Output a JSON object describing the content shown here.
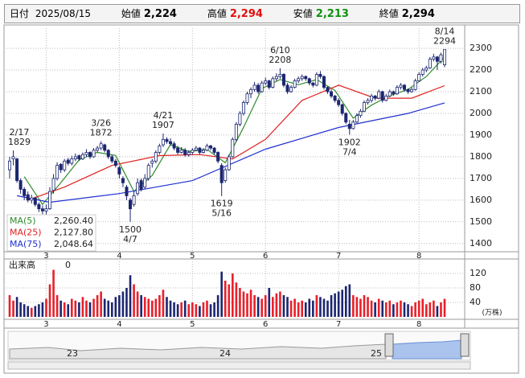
{
  "header": {
    "date_label": "日付",
    "date": "2025/08/15",
    "fields": [
      {
        "label": "始値",
        "value": "2,224"
      },
      {
        "label": "高値",
        "value": "2,294"
      },
      {
        "label": "安値",
        "value": "2,213"
      },
      {
        "label": "終値",
        "value": "2,294"
      }
    ]
  },
  "chart_data": [
    {
      "type": "candlestick",
      "up_color": "#ffffff",
      "down_color": "#1c2670",
      "ylim": [
        1362,
        2393
      ],
      "yticks": [
        1400,
        1500,
        1600,
        1700,
        1800,
        1900,
        2000,
        2100,
        2200,
        2300
      ],
      "xlim": [
        0,
        119
      ],
      "xticks": [
        {
          "value": 10,
          "label": "3"
        },
        {
          "value": 30,
          "label": "4"
        },
        {
          "value": 50,
          "label": "5"
        },
        {
          "value": 70,
          "label": "6"
        },
        {
          "value": 90,
          "label": "7"
        },
        {
          "value": 112,
          "label": "8"
        }
      ],
      "grid": true,
      "candles": [
        [
          1740,
          1800,
          1700,
          1780
        ],
        [
          1790,
          1829,
          1760,
          1800
        ],
        [
          1790,
          1795,
          1680,
          1690
        ],
        [
          1690,
          1700,
          1630,
          1650
        ],
        [
          1650,
          1660,
          1600,
          1620
        ],
        [
          1625,
          1640,
          1590,
          1600
        ],
        [
          1600,
          1625,
          1585,
          1610
        ],
        [
          1610,
          1615,
          1570,
          1580
        ],
        [
          1580,
          1590,
          1545,
          1560
        ],
        [
          1560,
          1575,
          1535,
          1550
        ],
        [
          1550,
          1580,
          1530,
          1560
        ],
        [
          1560,
          1660,
          1555,
          1640
        ],
        [
          1645,
          1720,
          1630,
          1700
        ],
        [
          1700,
          1775,
          1690,
          1760
        ],
        [
          1765,
          1770,
          1725,
          1740
        ],
        [
          1740,
          1790,
          1730,
          1780
        ],
        [
          1785,
          1795,
          1760,
          1770
        ],
        [
          1770,
          1805,
          1760,
          1790
        ],
        [
          1790,
          1815,
          1780,
          1800
        ],
        [
          1805,
          1810,
          1780,
          1790
        ],
        [
          1790,
          1820,
          1785,
          1810
        ],
        [
          1810,
          1835,
          1800,
          1820
        ],
        [
          1820,
          1825,
          1790,
          1800
        ],
        [
          1800,
          1840,
          1795,
          1830
        ],
        [
          1830,
          1850,
          1820,
          1840
        ],
        [
          1840,
          1872,
          1830,
          1860
        ],
        [
          1855,
          1860,
          1820,
          1830
        ],
        [
          1830,
          1835,
          1790,
          1800
        ],
        [
          1800,
          1810,
          1770,
          1780
        ],
        [
          1780,
          1790,
          1750,
          1760
        ],
        [
          1750,
          1760,
          1700,
          1720
        ],
        [
          1700,
          1710,
          1660,
          1680
        ],
        [
          1660,
          1670,
          1600,
          1620
        ],
        [
          1600,
          1610,
          1500,
          1560
        ],
        [
          1580,
          1640,
          1570,
          1620
        ],
        [
          1630,
          1700,
          1620,
          1680
        ],
        [
          1690,
          1700,
          1640,
          1650
        ],
        [
          1660,
          1720,
          1650,
          1700
        ],
        [
          1700,
          1770,
          1690,
          1760
        ],
        [
          1770,
          1790,
          1750,
          1780
        ],
        [
          1780,
          1830,
          1770,
          1820
        ],
        [
          1820,
          1860,
          1810,
          1850
        ],
        [
          1855,
          1907,
          1845,
          1880
        ],
        [
          1880,
          1890,
          1860,
          1870
        ],
        [
          1870,
          1885,
          1850,
          1860
        ],
        [
          1860,
          1870,
          1830,
          1840
        ],
        [
          1840,
          1850,
          1810,
          1820
        ],
        [
          1820,
          1845,
          1815,
          1830
        ],
        [
          1830,
          1840,
          1800,
          1810
        ],
        [
          1810,
          1830,
          1800,
          1820
        ],
        [
          1820,
          1840,
          1810,
          1830
        ],
        [
          1830,
          1850,
          1825,
          1840
        ],
        [
          1840,
          1845,
          1810,
          1820
        ],
        [
          1820,
          1840,
          1815,
          1830
        ],
        [
          1830,
          1860,
          1825,
          1850
        ],
        [
          1850,
          1855,
          1830,
          1840
        ],
        [
          1840,
          1845,
          1810,
          1820
        ],
        [
          1820,
          1825,
          1770,
          1780
        ],
        [
          1760,
          1770,
          1619,
          1680
        ],
        [
          1690,
          1750,
          1680,
          1740
        ],
        [
          1740,
          1810,
          1735,
          1800
        ],
        [
          1800,
          1890,
          1795,
          1880
        ],
        [
          1880,
          1960,
          1870,
          1950
        ],
        [
          1950,
          2010,
          1940,
          2000
        ],
        [
          2000,
          2060,
          1990,
          2050
        ],
        [
          2050,
          2100,
          2040,
          2090
        ],
        [
          2090,
          2120,
          2070,
          2110
        ],
        [
          2110,
          2145,
          2100,
          2130
        ],
        [
          2130,
          2140,
          2090,
          2100
        ],
        [
          2100,
          2150,
          2095,
          2140
        ],
        [
          2140,
          2165,
          2130,
          2150
        ],
        [
          2150,
          2155,
          2110,
          2120
        ],
        [
          2120,
          2170,
          2115,
          2160
        ],
        [
          2160,
          2185,
          2150,
          2170
        ],
        [
          2170,
          2208,
          2160,
          2180
        ],
        [
          2180,
          2185,
          2120,
          2130
        ],
        [
          2130,
          2140,
          2090,
          2100
        ],
        [
          2100,
          2130,
          2095,
          2120
        ],
        [
          2120,
          2160,
          2115,
          2150
        ],
        [
          2150,
          2170,
          2140,
          2160
        ],
        [
          2160,
          2180,
          2150,
          2170
        ],
        [
          2170,
          2175,
          2150,
          2160
        ],
        [
          2160,
          2165,
          2130,
          2140
        ],
        [
          2140,
          2145,
          2120,
          2130
        ],
        [
          2130,
          2190,
          2125,
          2180
        ],
        [
          2180,
          2195,
          2160,
          2170
        ],
        [
          2170,
          2175,
          2110,
          2120
        ],
        [
          2120,
          2125,
          2090,
          2100
        ],
        [
          2100,
          2110,
          2070,
          2080
        ],
        [
          2080,
          2085,
          2050,
          2060
        ],
        [
          2060,
          2070,
          2030,
          2040
        ],
        [
          2040,
          2045,
          1990,
          2000
        ],
        [
          2000,
          2005,
          1950,
          1960
        ],
        [
          1950,
          1970,
          1902,
          1930
        ],
        [
          1930,
          1970,
          1925,
          1960
        ],
        [
          1960,
          2000,
          1955,
          1990
        ],
        [
          1990,
          2020,
          1980,
          2010
        ],
        [
          2010,
          2060,
          2005,
          2050
        ],
        [
          2050,
          2070,
          2040,
          2060
        ],
        [
          2060,
          2090,
          2050,
          2080
        ],
        [
          2080,
          2085,
          2060,
          2070
        ],
        [
          2070,
          2110,
          2065,
          2100
        ],
        [
          2100,
          2105,
          2050,
          2060
        ],
        [
          2060,
          2090,
          2055,
          2080
        ],
        [
          2080,
          2110,
          2075,
          2100
        ],
        [
          2100,
          2105,
          2080,
          2090
        ],
        [
          2090,
          2130,
          2085,
          2120
        ],
        [
          2120,
          2140,
          2110,
          2130
        ],
        [
          2130,
          2135,
          2100,
          2110
        ],
        [
          2110,
          2115,
          2090,
          2100
        ],
        [
          2100,
          2120,
          2095,
          2110
        ],
        [
          2110,
          2160,
          2105,
          2150
        ],
        [
          2150,
          2190,
          2145,
          2180
        ],
        [
          2180,
          2210,
          2170,
          2200
        ],
        [
          2200,
          2220,
          2190,
          2210
        ],
        [
          2210,
          2260,
          2205,
          2250
        ],
        [
          2250,
          2275,
          2240,
          2260
        ],
        [
          2260,
          2265,
          2200,
          2240
        ],
        [
          2240,
          2280,
          2230,
          2270
        ],
        [
          2224,
          2294,
          2213,
          2294
        ]
      ],
      "annotations": [
        {
          "date": "2/17",
          "value": 1829
        },
        {
          "date": "3/26",
          "value": 1872
        },
        {
          "date": "4/7",
          "value": 1500
        },
        {
          "date": "4/21",
          "value": 1907
        },
        {
          "date": "5/16",
          "value": 1619
        },
        {
          "date": "6/10",
          "value": 2208
        },
        {
          "date": "7/4",
          "value": 1902
        },
        {
          "date": "8/14",
          "value": 2294
        }
      ],
      "series": [
        {
          "name": "MA(5)",
          "color": "#2e8b2e",
          "latest": "2,260.40",
          "x": [
            4,
            9,
            14,
            19,
            24,
            29,
            34,
            39,
            44,
            49,
            54,
            59,
            64,
            69,
            74,
            79,
            84,
            89,
            94,
            99,
            104,
            109,
            114,
            119
          ],
          "values": [
            1708,
            1580,
            1680,
            1786,
            1820,
            1806,
            1640,
            1714,
            1856,
            1824,
            1834,
            1772,
            1936,
            2114,
            2156,
            2132,
            2156,
            2106,
            1978,
            2038,
            2082,
            2110,
            2170,
            2260.4
          ]
        },
        {
          "name": "MA(25)",
          "color": "#e02020",
          "latest": "2,127.80",
          "x": [
            5,
            15,
            28,
            41,
            52,
            61,
            70,
            80,
            90,
            100,
            110,
            119
          ],
          "values": [
            1600,
            1660,
            1760,
            1805,
            1810,
            1790,
            1880,
            2060,
            2130,
            2070,
            2070,
            2127.8
          ]
        },
        {
          "name": "MA(75)",
          "color": "#2030d0",
          "latest": "2,048.64",
          "x": [
            2,
            11,
            30,
            50,
            70,
            90,
            109,
            119
          ],
          "values": [
            1620,
            1590,
            1630,
            1690,
            1835,
            1935,
            2000,
            2048.64
          ]
        }
      ]
    },
    {
      "type": "bar",
      "title": "出来高",
      "current": 0,
      "unit": "(万株)",
      "up_color": "#e8202a",
      "down_color": "#1c2670",
      "ylim": [
        0,
        160
      ],
      "yticks": [
        40,
        80,
        120
      ],
      "xlim": [
        0,
        119
      ],
      "xticks": [
        {
          "value": 10,
          "label": "3"
        },
        {
          "value": 30,
          "label": "4"
        },
        {
          "value": 50,
          "label": "5"
        },
        {
          "value": 70,
          "label": "6"
        },
        {
          "value": 90,
          "label": "7"
        },
        {
          "value": 112,
          "label": "8"
        }
      ],
      "values": [
        60,
        45,
        55,
        40,
        35,
        30,
        25,
        30,
        35,
        40,
        50,
        90,
        130,
        60,
        45,
        40,
        35,
        50,
        45,
        40,
        55,
        45,
        40,
        50,
        60,
        70,
        50,
        45,
        40,
        55,
        60,
        70,
        80,
        115,
        90,
        70,
        60,
        55,
        50,
        45,
        50,
        60,
        75,
        55,
        45,
        40,
        35,
        40,
        45,
        35,
        40,
        35,
        30,
        40,
        45,
        35,
        40,
        60,
        125,
        100,
        90,
        120,
        95,
        80,
        70,
        65,
        75,
        60,
        55,
        50,
        60,
        80,
        55,
        65,
        70,
        60,
        55,
        45,
        50,
        40,
        45,
        40,
        50,
        45,
        60,
        55,
        50,
        45,
        60,
        65,
        70,
        75,
        85,
        90,
        60,
        55,
        50,
        60,
        55,
        45,
        40,
        50,
        45,
        40,
        45,
        35,
        40,
        45,
        40,
        35,
        30,
        40,
        45,
        50,
        35,
        40,
        45,
        30,
        40,
        50
      ]
    }
  ],
  "navigator": {
    "labels": [
      "23",
      "24",
      "25"
    ]
  }
}
